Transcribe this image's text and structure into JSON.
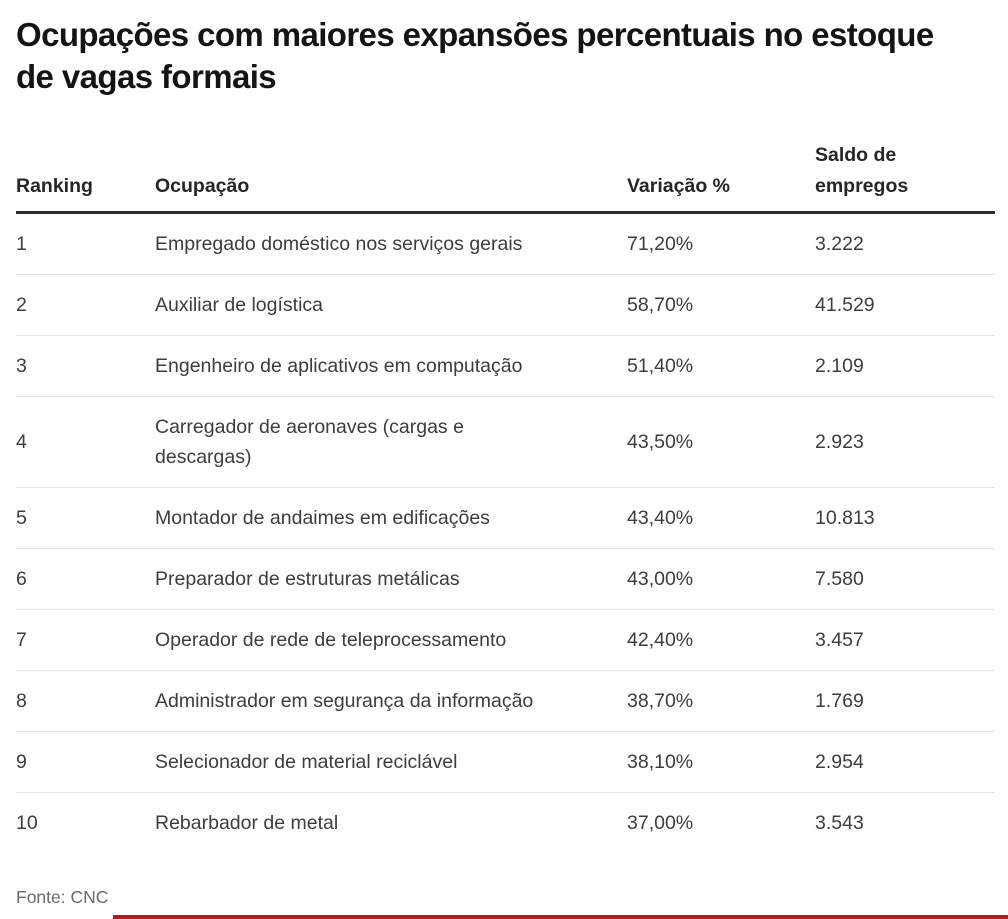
{
  "title": "Ocupações com maiores expansões percentuais no estoque\nde vagas formais",
  "table": {
    "columns": [
      "Ranking",
      "Ocupação",
      "Variação %",
      "Saldo de empregos"
    ],
    "rows": [
      {
        "ranking": "1",
        "ocupacao": "Empregado doméstico nos serviços gerais",
        "variacao": "71,20%",
        "saldo": "3.222"
      },
      {
        "ranking": "2",
        "ocupacao": "Auxiliar de logística",
        "variacao": "58,70%",
        "saldo": "41.529"
      },
      {
        "ranking": "3",
        "ocupacao": "Engenheiro de aplicativos em computação",
        "variacao": "51,40%",
        "saldo": "2.109"
      },
      {
        "ranking": "4",
        "ocupacao": "Carregador de aeronaves (cargas e\ndescargas)",
        "variacao": "43,50%",
        "saldo": "2.923"
      },
      {
        "ranking": "5",
        "ocupacao": "Montador de andaimes em edificações",
        "variacao": "43,40%",
        "saldo": "10.813"
      },
      {
        "ranking": "6",
        "ocupacao": "Preparador de estruturas metálicas",
        "variacao": "43,00%",
        "saldo": "7.580"
      },
      {
        "ranking": "7",
        "ocupacao": "Operador de rede de teleprocessamento",
        "variacao": "42,40%",
        "saldo": "3.457"
      },
      {
        "ranking": "8",
        "ocupacao": "Administrador em segurança da informação",
        "variacao": "38,70%",
        "saldo": "1.769"
      },
      {
        "ranking": "9",
        "ocupacao": "Selecionador de material reciclável",
        "variacao": "38,10%",
        "saldo": "2.954"
      },
      {
        "ranking": "10",
        "ocupacao": "Rebarbador de metal",
        "variacao": "37,00%",
        "saldo": "3.543"
      }
    ]
  },
  "source": "Fonte: CNC",
  "colors": {
    "accent_bar": "#c4170c",
    "title_text": "#141414",
    "header_text": "#262626",
    "body_text": "#3d3d3d",
    "separator": "#e3e3e3",
    "header_rule": "#2d2d2d"
  },
  "chart_data": {
    "type": "table",
    "title": "Ocupações com maiores expansões percentuais no estoque de vagas formais",
    "columns": [
      "Ranking",
      "Ocupação",
      "Variação %",
      "Saldo de empregos"
    ],
    "rows": [
      [
        1,
        "Empregado doméstico nos serviços gerais",
        "71,20%",
        "3.222"
      ],
      [
        2,
        "Auxiliar de logística",
        "58,70%",
        "41.529"
      ],
      [
        3,
        "Engenheiro de aplicativos em computação",
        "51,40%",
        "2.109"
      ],
      [
        4,
        "Carregador de aeronaves (cargas e descargas)",
        "43,50%",
        "2.923"
      ],
      [
        5,
        "Montador de andaimes em edificações",
        "43,40%",
        "10.813"
      ],
      [
        6,
        "Preparador de estruturas metálicas",
        "43,00%",
        "7.580"
      ],
      [
        7,
        "Operador de rede de teleprocessamento",
        "42,40%",
        "3.457"
      ],
      [
        8,
        "Administrador em segurança da informação",
        "38,70%",
        "1.769"
      ],
      [
        9,
        "Selecionador de material reciclável",
        "38,10%",
        "2.954"
      ],
      [
        10,
        "Rebarbador de metal",
        "37,00%",
        "3.543"
      ]
    ],
    "variacao_percent_values": [
      71.2,
      58.7,
      51.4,
      43.5,
      43.4,
      43.0,
      42.4,
      38.7,
      38.1,
      37.0
    ],
    "saldo_values": [
      3222,
      41529,
      2109,
      2923,
      10813,
      7580,
      3457,
      1769,
      2954,
      3543
    ],
    "source": "Fonte: CNC"
  }
}
